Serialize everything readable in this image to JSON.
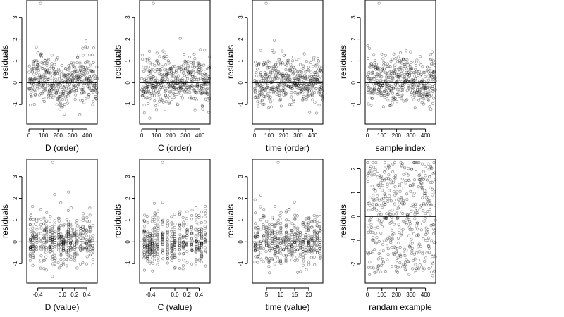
{
  "colors": {
    "background": "#ffffff",
    "points": "#000000",
    "zero_line": "#000000"
  },
  "chart_data": [
    {
      "type": "scatter",
      "xlabel": "D (order)",
      "ylabel": "residuals",
      "xlim": [
        -15,
        470
      ],
      "ylim": [
        -1.9,
        3.8
      ],
      "xticks": [
        0,
        100,
        200,
        300,
        400
      ],
      "xtick_labels": [
        "0",
        "100",
        "200",
        "300",
        "400"
      ],
      "yticks": [
        -1,
        0,
        1,
        2,
        3
      ],
      "ytick_labels": [
        "-1",
        "0",
        "1",
        "2",
        "3"
      ],
      "hline": 0,
      "n": 470,
      "pattern": "order_wavy",
      "trend": "wavy"
    },
    {
      "type": "scatter",
      "xlabel": "C (order)",
      "ylabel": "residuals",
      "xlim": [
        -15,
        470
      ],
      "ylim": [
        -1.9,
        3.8
      ],
      "xticks": [
        0,
        100,
        200,
        300,
        400
      ],
      "xtick_labels": [
        "0",
        "100",
        "200",
        "300",
        "400"
      ],
      "yticks": [
        -1,
        0,
        1,
        2,
        3
      ],
      "ytick_labels": [
        "-1",
        "0",
        "1",
        "2",
        "3"
      ],
      "hline": 0,
      "n": 470,
      "pattern": "order_noise"
    },
    {
      "type": "scatter",
      "xlabel": "time (order)",
      "ylabel": "residuals",
      "xlim": [
        -15,
        470
      ],
      "ylim": [
        -1.9,
        3.8
      ],
      "xticks": [
        0,
        100,
        200,
        300,
        400
      ],
      "xtick_labels": [
        "0",
        "100",
        "200",
        "300",
        "400"
      ],
      "yticks": [
        -1,
        0,
        1,
        2,
        3
      ],
      "ytick_labels": [
        "-1",
        "0",
        "1",
        "2",
        "3"
      ],
      "hline": 0,
      "n": 470,
      "pattern": "order_noise"
    },
    {
      "type": "scatter",
      "xlabel": "sample index",
      "ylabel": "residuals",
      "xlim": [
        -15,
        470
      ],
      "ylim": [
        -1.9,
        3.8
      ],
      "xticks": [
        0,
        100,
        200,
        300,
        400
      ],
      "xtick_labels": [
        "0",
        "100",
        "200",
        "300",
        "400"
      ],
      "yticks": [
        -1,
        0,
        1,
        2,
        3
      ],
      "ytick_labels": [
        "-1",
        "0",
        "1",
        "2",
        "3"
      ],
      "hline": 0,
      "n": 470,
      "pattern": "order_wavy",
      "trend": "wavy2"
    },
    {
      "type": "scatter",
      "xlabel": "D (value)",
      "ylabel": "residuals",
      "xlim": [
        -0.58,
        0.57
      ],
      "ylim": [
        -1.9,
        3.8
      ],
      "xticks": [
        -0.4,
        0.0,
        0.2,
        0.4
      ],
      "xtick_labels": [
        "-0.4",
        "0.0",
        "0.2",
        "0.4"
      ],
      "yticks": [
        -1,
        0,
        1,
        2,
        3
      ],
      "ytick_labels": [
        "-1",
        "0",
        "1",
        "2",
        "3"
      ],
      "hline": 0,
      "n": 470,
      "pattern": "columns",
      "columns": [
        -0.52,
        -0.48,
        -0.42,
        -0.35,
        -0.3,
        -0.26,
        -0.2,
        -0.16,
        -0.12,
        -0.06,
        -0.02,
        0.02,
        0.07,
        0.1,
        0.14,
        0.2,
        0.24,
        0.3,
        0.34,
        0.4,
        0.45,
        0.5
      ]
    },
    {
      "type": "scatter",
      "xlabel": "C (value)",
      "ylabel": "residuals",
      "xlim": [
        -0.58,
        0.58
      ],
      "ylim": [
        -1.9,
        3.8
      ],
      "xticks": [
        -0.4,
        0.0,
        0.2,
        0.4
      ],
      "xtick_labels": [
        "-0.4",
        "0.0",
        "0.2",
        "0.4"
      ],
      "yticks": [
        -1,
        0,
        1,
        2,
        3
      ],
      "ytick_labels": [
        "-1",
        "0",
        "1",
        "2",
        "3"
      ],
      "hline": 0,
      "n": 470,
      "pattern": "columns",
      "columns": [
        -0.5,
        -0.45,
        -0.41,
        -0.37,
        -0.33,
        -0.28,
        -0.2,
        -0.12,
        -0.05,
        0.0,
        0.08,
        0.14,
        0.2,
        0.28,
        0.35,
        0.4,
        0.44,
        0.5
      ]
    },
    {
      "type": "scatter",
      "xlabel": "time (value)",
      "ylabel": "residuals",
      "xlim": [
        0,
        25
      ],
      "ylim": [
        -1.9,
        3.8
      ],
      "xticks": [
        5,
        10,
        15,
        20
      ],
      "xtick_labels": [
        "5",
        "10",
        "15",
        "20"
      ],
      "yticks": [
        -1,
        0,
        1,
        2,
        3
      ],
      "ytick_labels": [
        "-1",
        "0",
        "1",
        "2",
        "3"
      ],
      "hline": 0,
      "n": 470,
      "pattern": "columns",
      "columns": [
        1,
        2,
        3,
        4,
        5,
        6,
        7,
        8,
        9,
        10,
        11,
        12,
        13,
        14,
        15,
        16,
        17,
        18,
        19,
        20,
        21,
        22,
        23,
        24
      ]
    },
    {
      "type": "scatter",
      "xlabel": "randam example",
      "ylabel": "residuals",
      "xlim": [
        -15,
        470
      ],
      "ylim": [
        -2.8,
        2.4
      ],
      "xticks": [
        0,
        100,
        200,
        300,
        400
      ],
      "xtick_labels": [
        "0",
        "100",
        "200",
        "300",
        "400"
      ],
      "yticks": [
        -2,
        -1,
        0,
        1,
        2
      ],
      "ytick_labels": [
        "-2",
        "-1",
        "0",
        "1",
        "2"
      ],
      "hline": 0,
      "n": 470,
      "pattern": "uniform"
    }
  ]
}
